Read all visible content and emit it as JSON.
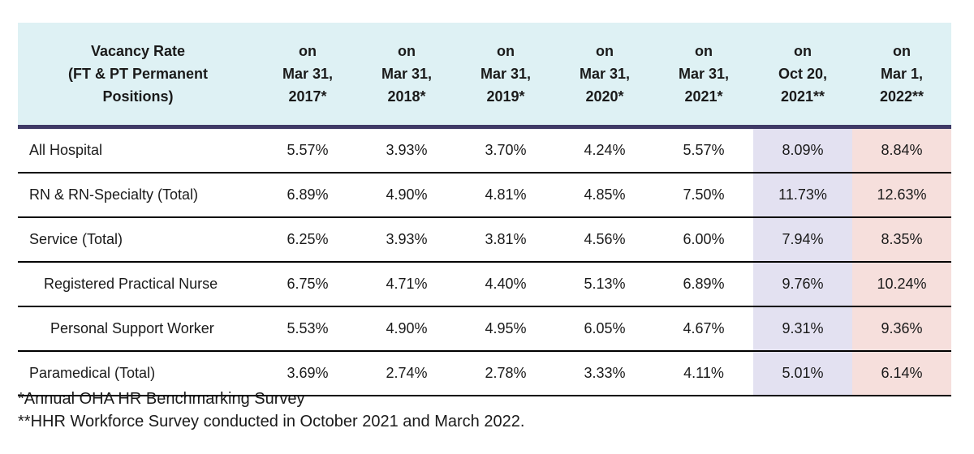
{
  "table": {
    "headers": [
      "Vacancy Rate\n(FT & PT Permanent\nPositions)",
      "on\nMar 31,\n2017*",
      "on\nMar 31,\n2018*",
      "on\nMar 31,\n2019*",
      "on\nMar 31,\n2020*",
      "on\nMar 31,\n2021*",
      "on\nOct 20,\n2021**",
      "on\nMar 1,\n2022**"
    ],
    "rows": [
      {
        "label": "All Hospital",
        "values": [
          "5.57%",
          "3.93%",
          "3.70%",
          "4.24%",
          "5.57%",
          "8.09%",
          "8.84%"
        ]
      },
      {
        "label": "RN & RN-Specialty (Total)",
        "values": [
          "6.89%",
          "4.90%",
          "4.81%",
          "4.85%",
          "7.50%",
          "11.73%",
          "12.63%"
        ]
      },
      {
        "label": "Service (Total)",
        "values": [
          "6.25%",
          "3.93%",
          "3.81%",
          "4.56%",
          "6.00%",
          "7.94%",
          "8.35%"
        ]
      },
      {
        "label": "Registered Practical Nurse",
        "values": [
          "6.75%",
          "4.71%",
          "4.40%",
          "5.13%",
          "6.89%",
          "9.76%",
          "10.24%"
        ]
      },
      {
        "label": "Personal Support Worker",
        "values": [
          "5.53%",
          "4.90%",
          "4.95%",
          "6.05%",
          "4.67%",
          "9.31%",
          "9.36%"
        ]
      },
      {
        "label": "Paramedical (Total)",
        "values": [
          "3.69%",
          "2.74%",
          "2.78%",
          "3.33%",
          "4.11%",
          "5.01%",
          "6.14%"
        ]
      }
    ]
  },
  "notes": [
    "*Annual OHA HR Benchmarking Survey",
    "**HHR Workforce Survey conducted in October 2021 and March 2022."
  ],
  "colors": {
    "header_bg": "#def1f4",
    "header_rule": "#3f3a66",
    "oct_2021_column_bg": "#e3e1f1",
    "mar_2022_column_bg": "#f6dfdc"
  }
}
